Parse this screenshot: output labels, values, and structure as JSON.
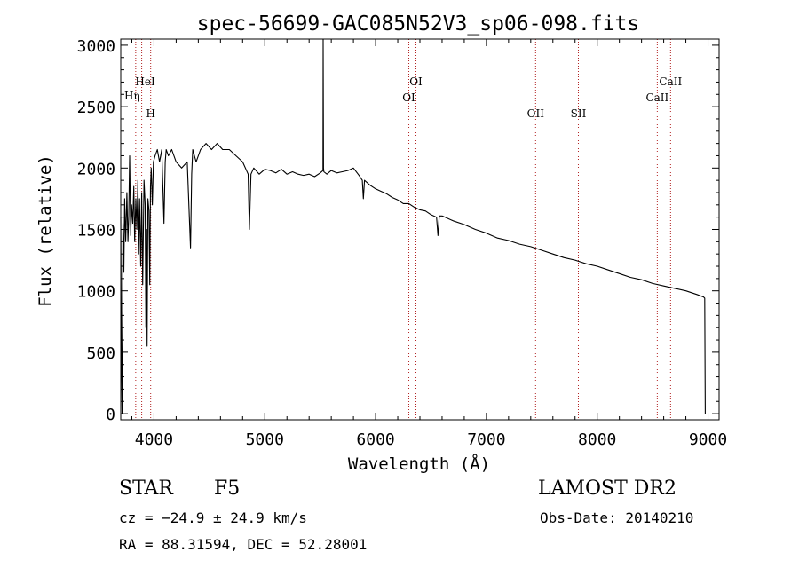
{
  "chart_data": {
    "type": "line",
    "title": "spec-56699-GAC085N52V3_sp06-098.fits",
    "xlabel": "Wavelength (Å)",
    "ylabel": "Flux (relative)",
    "xlim": [
      3700,
      9100
    ],
    "ylim": [
      -50,
      3050
    ],
    "x_ticks": [
      4000,
      5000,
      6000,
      7000,
      8000,
      9000
    ],
    "y_ticks": [
      0,
      500,
      1000,
      1500,
      2000,
      2500,
      3000
    ],
    "grid": false,
    "line_color": "#000000",
    "marker_color": "#b22222",
    "series": [
      {
        "x": [
          3700,
          3705,
          3712,
          3720,
          3728,
          3735,
          3745,
          3755,
          3765,
          3772,
          3780,
          3790,
          3798,
          3808,
          3818,
          3826,
          3836,
          3845,
          3855,
          3862,
          3870,
          3880,
          3889,
          3898,
          3910,
          3920,
          3927,
          3933,
          3938,
          3945,
          3955,
          3962,
          3968,
          3975,
          3985,
          3995,
          4010,
          4030,
          4050,
          4070,
          4090,
          4101,
          4110,
          4130,
          4160,
          4200,
          4250,
          4300,
          4330,
          4340,
          4350,
          4380,
          4420,
          4470,
          4520,
          4570,
          4620,
          4680,
          4740,
          4800,
          4850,
          4861,
          4875,
          4900,
          4950,
          5000,
          5050,
          5100,
          5150,
          5200,
          5250,
          5300,
          5350,
          5400,
          5450,
          5500,
          5525,
          5527,
          5530,
          5533,
          5560,
          5600,
          5650,
          5700,
          5750,
          5800,
          5850,
          5880,
          5890,
          5900,
          5950,
          6000,
          6050,
          6100,
          6150,
          6200,
          6250,
          6300,
          6350,
          6400,
          6450,
          6500,
          6550,
          6563,
          6575,
          6600,
          6650,
          6700,
          6800,
          6900,
          7000,
          7100,
          7200,
          7300,
          7400,
          7500,
          7600,
          7700,
          7800,
          7900,
          8000,
          8100,
          8200,
          8300,
          8400,
          8500,
          8600,
          8700,
          8800,
          8900,
          8960,
          8970,
          8975
        ],
        "y": [
          1600,
          600,
          0,
          1550,
          1150,
          1750,
          1400,
          1800,
          1400,
          1600,
          2100,
          1450,
          1700,
          1550,
          1850,
          1400,
          1750,
          1500,
          1900,
          1300,
          1750,
          1200,
          1800,
          1050,
          1900,
          1700,
          700,
          1500,
          550,
          1750,
          1650,
          1050,
          1850,
          2000,
          1700,
          2050,
          2100,
          2150,
          2050,
          2150,
          1550,
          2050,
          2150,
          2100,
          2150,
          2050,
          2000,
          2050,
          1350,
          1950,
          2150,
          2050,
          2150,
          2200,
          2150,
          2200,
          2150,
          2150,
          2100,
          2050,
          1950,
          1500,
          1950,
          2000,
          1950,
          1990,
          1980,
          1960,
          1990,
          1950,
          1970,
          1950,
          1940,
          1950,
          1930,
          1960,
          1980,
          3050,
          2000,
          1970,
          1950,
          1980,
          1960,
          1970,
          1980,
          2000,
          1940,
          1900,
          1750,
          1900,
          1860,
          1830,
          1810,
          1790,
          1760,
          1740,
          1710,
          1710,
          1680,
          1660,
          1650,
          1620,
          1600,
          1450,
          1610,
          1610,
          1590,
          1570,
          1540,
          1500,
          1470,
          1430,
          1410,
          1380,
          1360,
          1330,
          1300,
          1270,
          1250,
          1220,
          1200,
          1170,
          1140,
          1110,
          1090,
          1060,
          1040,
          1020,
          1000,
          970,
          950,
          940,
          0
        ]
      }
    ],
    "line_markers": [
      {
        "wl": 3835,
        "label": "Hη"
      },
      {
        "wl": 3889,
        "label": "HeI"
      },
      {
        "wl": 3970,
        "label": "H"
      },
      {
        "wl": 6300,
        "label": "OI"
      },
      {
        "wl": 6364,
        "label": "OI"
      },
      {
        "wl": 7444,
        "label": "OII"
      },
      {
        "wl": 7830,
        "label": "SII"
      },
      {
        "wl": 8542,
        "label": "CaII"
      },
      {
        "wl": 8662,
        "label": "CaII"
      }
    ]
  },
  "info": {
    "object_class": "STAR",
    "subclass": "F5",
    "survey": "LAMOST DR2",
    "redshift": "cz = −24.9 ± 24.9 km/s",
    "obs_date": "Obs-Date: 20140210",
    "coords": "RA =  88.31594, DEC =  52.28001"
  }
}
